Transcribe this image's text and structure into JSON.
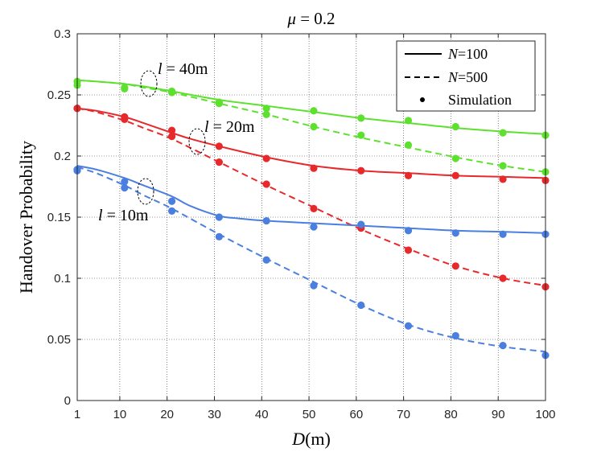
{
  "chart_data": {
    "type": "line",
    "title": "μ = 0.2",
    "title_symbol": "μ",
    "title_rest": " = 0.2",
    "xlabel": "D(m)",
    "xlabel_var": "D",
    "xlabel_unit": "(m)",
    "ylabel": "Handover Probability",
    "xlim": [
      1,
      100
    ],
    "ylim": [
      0,
      0.3
    ],
    "xticks": [
      1,
      10,
      20,
      30,
      40,
      50,
      60,
      70,
      80,
      90,
      100
    ],
    "yticks": [
      0,
      0.05,
      0.1,
      0.15,
      0.2,
      0.25,
      0.3
    ],
    "ytick_labels": [
      "0",
      "0.05",
      "0.1",
      "0.15",
      "0.2",
      "0.25",
      "0.3"
    ],
    "grid": true,
    "legend": {
      "placement": "top-right",
      "entries": [
        {
          "style": "solid",
          "label": "N=100",
          "var": "N",
          "rest": "=100"
        },
        {
          "style": "dashed",
          "label": "N=500",
          "var": "N",
          "rest": "=500"
        },
        {
          "style": "marker",
          "label": "Simulation"
        }
      ]
    },
    "annotations": [
      {
        "text": "l = 40m",
        "var": "l",
        "rest": " = 40m",
        "target": "green"
      },
      {
        "text": "l = 20m",
        "var": "l",
        "rest": " = 20m",
        "target": "red"
      },
      {
        "text": "l = 10m",
        "var": "l",
        "rest": " = 10m",
        "target": "blue"
      }
    ],
    "series": [
      {
        "name": "l=40m, N=100 (analysis)",
        "color": "#5ee12e",
        "dash": "solid",
        "x": [
          1,
          5,
          11,
          15,
          21,
          31,
          41,
          51,
          61,
          71,
          81,
          91,
          100
        ],
        "y": [
          0.262,
          0.261,
          0.259,
          0.257,
          0.253,
          0.246,
          0.241,
          0.236,
          0.231,
          0.227,
          0.223,
          0.22,
          0.218
        ]
      },
      {
        "name": "l=40m, N=500 (analysis)",
        "color": "#5ee12e",
        "dash": "dashed",
        "x": [
          1,
          5,
          11,
          15,
          21,
          31,
          41,
          51,
          61,
          71,
          81,
          91,
          100
        ],
        "y": [
          0.262,
          0.261,
          0.259,
          0.256,
          0.252,
          0.243,
          0.234,
          0.224,
          0.215,
          0.207,
          0.199,
          0.192,
          0.187
        ]
      },
      {
        "name": "l=40m, N=100 (simulation)",
        "color": "#5ee12e",
        "dash": "markers",
        "x": [
          1,
          11,
          21,
          31,
          41,
          51,
          61,
          71,
          81,
          91,
          100
        ],
        "y": [
          0.261,
          0.256,
          0.253,
          0.244,
          0.239,
          0.237,
          0.231,
          0.229,
          0.224,
          0.219,
          0.217
        ]
      },
      {
        "name": "l=40m, N=500 (simulation)",
        "color": "#5ee12e",
        "dash": "markers",
        "x": [
          1,
          11,
          21,
          31,
          41,
          51,
          61,
          71,
          81,
          91,
          100
        ],
        "y": [
          0.258,
          0.255,
          0.252,
          0.243,
          0.234,
          0.224,
          0.217,
          0.209,
          0.198,
          0.192,
          0.187
        ]
      },
      {
        "name": "l=20m, N=100 (analysis)",
        "color": "#e8292c",
        "dash": "solid",
        "x": [
          1,
          5,
          11,
          15,
          21,
          25,
          31,
          41,
          51,
          61,
          71,
          81,
          91,
          100
        ],
        "y": [
          0.239,
          0.237,
          0.232,
          0.227,
          0.219,
          0.214,
          0.208,
          0.199,
          0.192,
          0.188,
          0.186,
          0.184,
          0.183,
          0.182
        ]
      },
      {
        "name": "l=20m, N=500 (analysis)",
        "color": "#e8292c",
        "dash": "dashed",
        "x": [
          1,
          5,
          11,
          15,
          21,
          31,
          41,
          51,
          61,
          71,
          81,
          91,
          100
        ],
        "y": [
          0.239,
          0.236,
          0.229,
          0.223,
          0.214,
          0.195,
          0.176,
          0.158,
          0.14,
          0.124,
          0.11,
          0.1,
          0.094
        ]
      },
      {
        "name": "l=20m, N=100 (simulation)",
        "color": "#e8292c",
        "dash": "markers",
        "x": [
          1,
          11,
          21,
          31,
          41,
          51,
          61,
          71,
          81,
          91,
          100
        ],
        "y": [
          0.239,
          0.232,
          0.221,
          0.208,
          0.198,
          0.19,
          0.188,
          0.184,
          0.184,
          0.181,
          0.18
        ]
      },
      {
        "name": "l=20m, N=500 (simulation)",
        "color": "#e8292c",
        "dash": "markers",
        "x": [
          1,
          11,
          21,
          31,
          41,
          51,
          61,
          71,
          81,
          91,
          100
        ],
        "y": [
          0.239,
          0.23,
          0.216,
          0.195,
          0.177,
          0.157,
          0.141,
          0.123,
          0.11,
          0.1,
          0.093
        ]
      },
      {
        "name": "l=10m, N=100 (analysis)",
        "color": "#4a7fe0",
        "dash": "solid",
        "x": [
          1,
          5,
          11,
          15,
          21,
          25,
          31,
          35,
          41,
          51,
          61,
          71,
          81,
          91,
          100
        ],
        "y": [
          0.192,
          0.189,
          0.182,
          0.176,
          0.167,
          0.159,
          0.151,
          0.149,
          0.147,
          0.145,
          0.143,
          0.141,
          0.139,
          0.138,
          0.137
        ]
      },
      {
        "name": "l=10m, N=500 (analysis)",
        "color": "#4a7fe0",
        "dash": "dashed",
        "x": [
          1,
          5,
          11,
          15,
          21,
          31,
          41,
          51,
          61,
          71,
          81,
          91,
          100
        ],
        "y": [
          0.191,
          0.186,
          0.176,
          0.168,
          0.157,
          0.136,
          0.116,
          0.097,
          0.078,
          0.062,
          0.051,
          0.044,
          0.04
        ]
      },
      {
        "name": "l=10m, N=100 (simulation)",
        "color": "#4a7fe0",
        "dash": "markers",
        "x": [
          1,
          11,
          21,
          31,
          41,
          51,
          61,
          71,
          81,
          91,
          100
        ],
        "y": [
          0.189,
          0.179,
          0.163,
          0.15,
          0.147,
          0.142,
          0.144,
          0.139,
          0.137,
          0.136,
          0.136
        ]
      },
      {
        "name": "l=10m, N=500 (simulation)",
        "color": "#4a7fe0",
        "dash": "markers",
        "x": [
          1,
          11,
          21,
          31,
          41,
          51,
          61,
          71,
          81,
          91,
          100
        ],
        "y": [
          0.188,
          0.174,
          0.155,
          0.134,
          0.115,
          0.094,
          0.078,
          0.061,
          0.053,
          0.045,
          0.037
        ]
      }
    ]
  }
}
